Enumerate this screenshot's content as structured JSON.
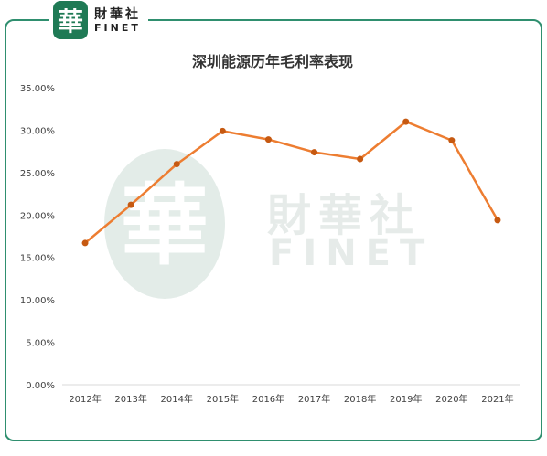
{
  "brand": {
    "logo_char": "華",
    "name_cn": "財華社",
    "name_en": "FINET",
    "color": "#1f7a55"
  },
  "watermark": {
    "seal_char": "華",
    "name_cn": "財華社",
    "name_en": "FINET"
  },
  "colors": {
    "frame": "#2f8f6f",
    "line": "#ed7d31",
    "marker": "#c65911"
  },
  "chart_data": {
    "type": "line",
    "title": "深圳能源历年毛利率表现",
    "categories": [
      "2012年",
      "2013年",
      "2014年",
      "2015年",
      "2016年",
      "2017年",
      "2018年",
      "2019年",
      "2020年",
      "2021年"
    ],
    "series": [
      {
        "values": [
          16.7,
          21.2,
          26.0,
          29.9,
          28.9,
          27.4,
          26.6,
          31.0,
          28.8,
          19.4
        ]
      }
    ],
    "y_ticks": [
      "0.00%",
      "5.00%",
      "10.00%",
      "15.00%",
      "20.00%",
      "25.00%",
      "30.00%",
      "35.00%"
    ],
    "ylim": [
      0,
      35
    ],
    "y_step": 5,
    "grid": false,
    "legend": "none"
  }
}
